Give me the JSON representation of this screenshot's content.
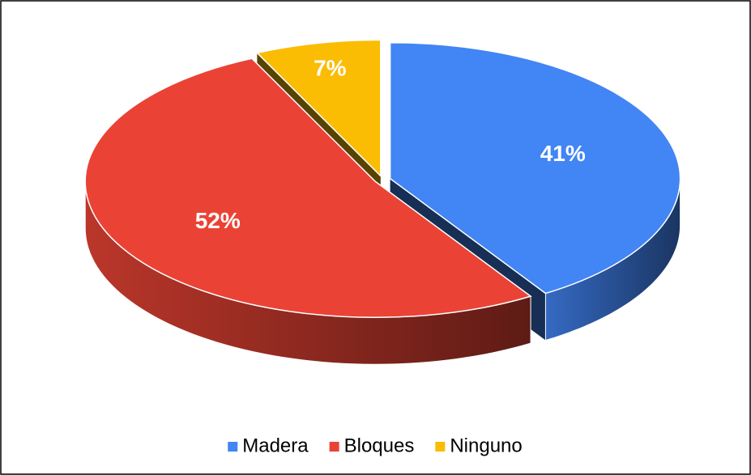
{
  "chart_data": {
    "type": "pie",
    "categories": [
      "Madera",
      "Bloques",
      "Ninguno"
    ],
    "values": [
      41,
      52,
      7
    ],
    "value_labels": [
      "41%",
      "52%",
      "7%"
    ],
    "colors": [
      "#4285f4",
      "#ea4335",
      "#fbbc04"
    ],
    "legend": "bottom"
  }
}
